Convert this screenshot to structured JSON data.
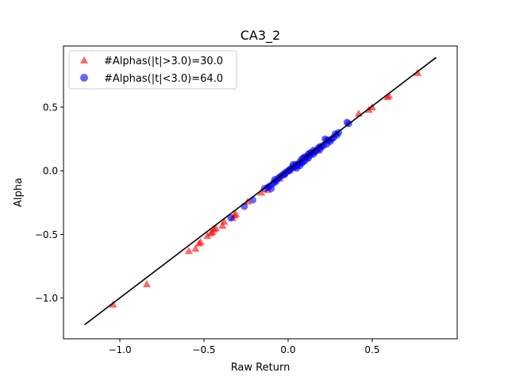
{
  "chart_data": {
    "type": "scatter",
    "title": "CA3_2",
    "xlabel": "Raw Return",
    "ylabel": "Alpha",
    "xlim": [
      -1.335,
      1.005
    ],
    "ylim": [
      -1.32,
      0.98
    ],
    "xticks": [
      -1.0,
      -0.5,
      0.0,
      0.5
    ],
    "xtick_labels": [
      "−1.0",
      "−0.5",
      "0.0",
      "0.5"
    ],
    "yticks": [
      -1.0,
      -0.5,
      0.0,
      0.5
    ],
    "ytick_labels": [
      "−1.0",
      "−0.5",
      "0.0",
      "0.5"
    ],
    "grid": false,
    "legend_position": "upper-left",
    "fit_line": {
      "x": [
        -1.21,
        0.88
      ],
      "y": [
        -1.21,
        0.89
      ],
      "color": "#000000"
    },
    "series": [
      {
        "name": "#Alphas(|t|>3.0)=30.0",
        "marker": "triangle",
        "color": "#ff0000",
        "points": [
          [
            -1.04,
            -1.05
          ],
          [
            -0.84,
            -0.89
          ],
          [
            -0.59,
            -0.63
          ],
          [
            -0.55,
            -0.61
          ],
          [
            -0.53,
            -0.57
          ],
          [
            -0.52,
            -0.56
          ],
          [
            -0.48,
            -0.51
          ],
          [
            -0.46,
            -0.49
          ],
          [
            -0.45,
            -0.48
          ],
          [
            -0.44,
            -0.46
          ],
          [
            -0.43,
            -0.45
          ],
          [
            -0.39,
            -0.43
          ],
          [
            -0.38,
            -0.4
          ],
          [
            -0.33,
            -0.37
          ],
          [
            -0.32,
            -0.35
          ],
          [
            -0.31,
            -0.34
          ],
          [
            -0.24,
            -0.24
          ],
          [
            -0.16,
            -0.17
          ],
          [
            -0.12,
            -0.15
          ],
          [
            -0.05,
            -0.06
          ],
          [
            0.05,
            0.04
          ],
          [
            0.11,
            0.1
          ],
          [
            0.15,
            0.15
          ],
          [
            0.18,
            0.16
          ],
          [
            0.42,
            0.45
          ],
          [
            0.48,
            0.48
          ],
          [
            0.5,
            0.5
          ],
          [
            0.59,
            0.58
          ],
          [
            0.6,
            0.59
          ],
          [
            0.77,
            0.77
          ]
        ]
      },
      {
        "name": "#Alphas(|t|<3.0)=64.0",
        "marker": "circle",
        "color": "#0000ff",
        "points": [
          [
            -0.34,
            -0.37
          ],
          [
            -0.26,
            -0.28
          ],
          [
            -0.21,
            -0.23
          ],
          [
            -0.14,
            -0.14
          ],
          [
            -0.12,
            -0.13
          ],
          [
            -0.11,
            -0.12
          ],
          [
            -0.1,
            -0.14
          ],
          [
            -0.09,
            -0.1
          ],
          [
            -0.08,
            -0.09
          ],
          [
            -0.07,
            -0.08
          ],
          [
            -0.06,
            -0.06
          ],
          [
            -0.05,
            -0.05
          ],
          [
            -0.04,
            -0.04
          ],
          [
            -0.03,
            -0.03
          ],
          [
            -0.02,
            -0.02
          ],
          [
            -0.01,
            -0.01
          ],
          [
            0.0,
            0.0
          ],
          [
            0.01,
            0.01
          ],
          [
            0.02,
            0.02
          ],
          [
            0.03,
            0.03
          ],
          [
            0.04,
            0.03
          ],
          [
            0.05,
            0.05
          ],
          [
            0.05,
            0.02
          ],
          [
            0.06,
            0.05
          ],
          [
            0.07,
            0.07
          ],
          [
            0.07,
            0.04
          ],
          [
            0.08,
            0.09
          ],
          [
            0.08,
            0.06
          ],
          [
            0.09,
            0.1
          ],
          [
            0.1,
            0.08
          ],
          [
            0.1,
            0.11
          ],
          [
            0.11,
            0.11
          ],
          [
            0.12,
            0.1
          ],
          [
            0.12,
            0.13
          ],
          [
            0.13,
            0.12
          ],
          [
            0.14,
            0.14
          ],
          [
            0.15,
            0.13
          ],
          [
            0.15,
            0.16
          ],
          [
            0.16,
            0.15
          ],
          [
            0.17,
            0.16
          ],
          [
            0.18,
            0.18
          ],
          [
            0.19,
            0.17
          ],
          [
            0.2,
            0.19
          ],
          [
            0.21,
            0.2
          ],
          [
            0.22,
            0.25
          ],
          [
            0.23,
            0.21
          ],
          [
            0.24,
            0.24
          ],
          [
            0.25,
            0.23
          ],
          [
            0.26,
            0.25
          ],
          [
            0.27,
            0.26
          ],
          [
            0.28,
            0.29
          ],
          [
            0.29,
            0.28
          ],
          [
            0.3,
            0.3
          ],
          [
            0.35,
            0.38
          ],
          [
            0.36,
            0.37
          ],
          [
            0.09,
            0.07
          ],
          [
            -0.02,
            -0.03
          ],
          [
            0.01,
            0.0
          ],
          [
            0.03,
            0.05
          ],
          [
            0.13,
            0.14
          ],
          [
            0.19,
            0.19
          ],
          [
            0.23,
            0.24
          ],
          [
            0.04,
            0.04
          ],
          [
            -0.08,
            -0.07
          ]
        ]
      }
    ]
  }
}
